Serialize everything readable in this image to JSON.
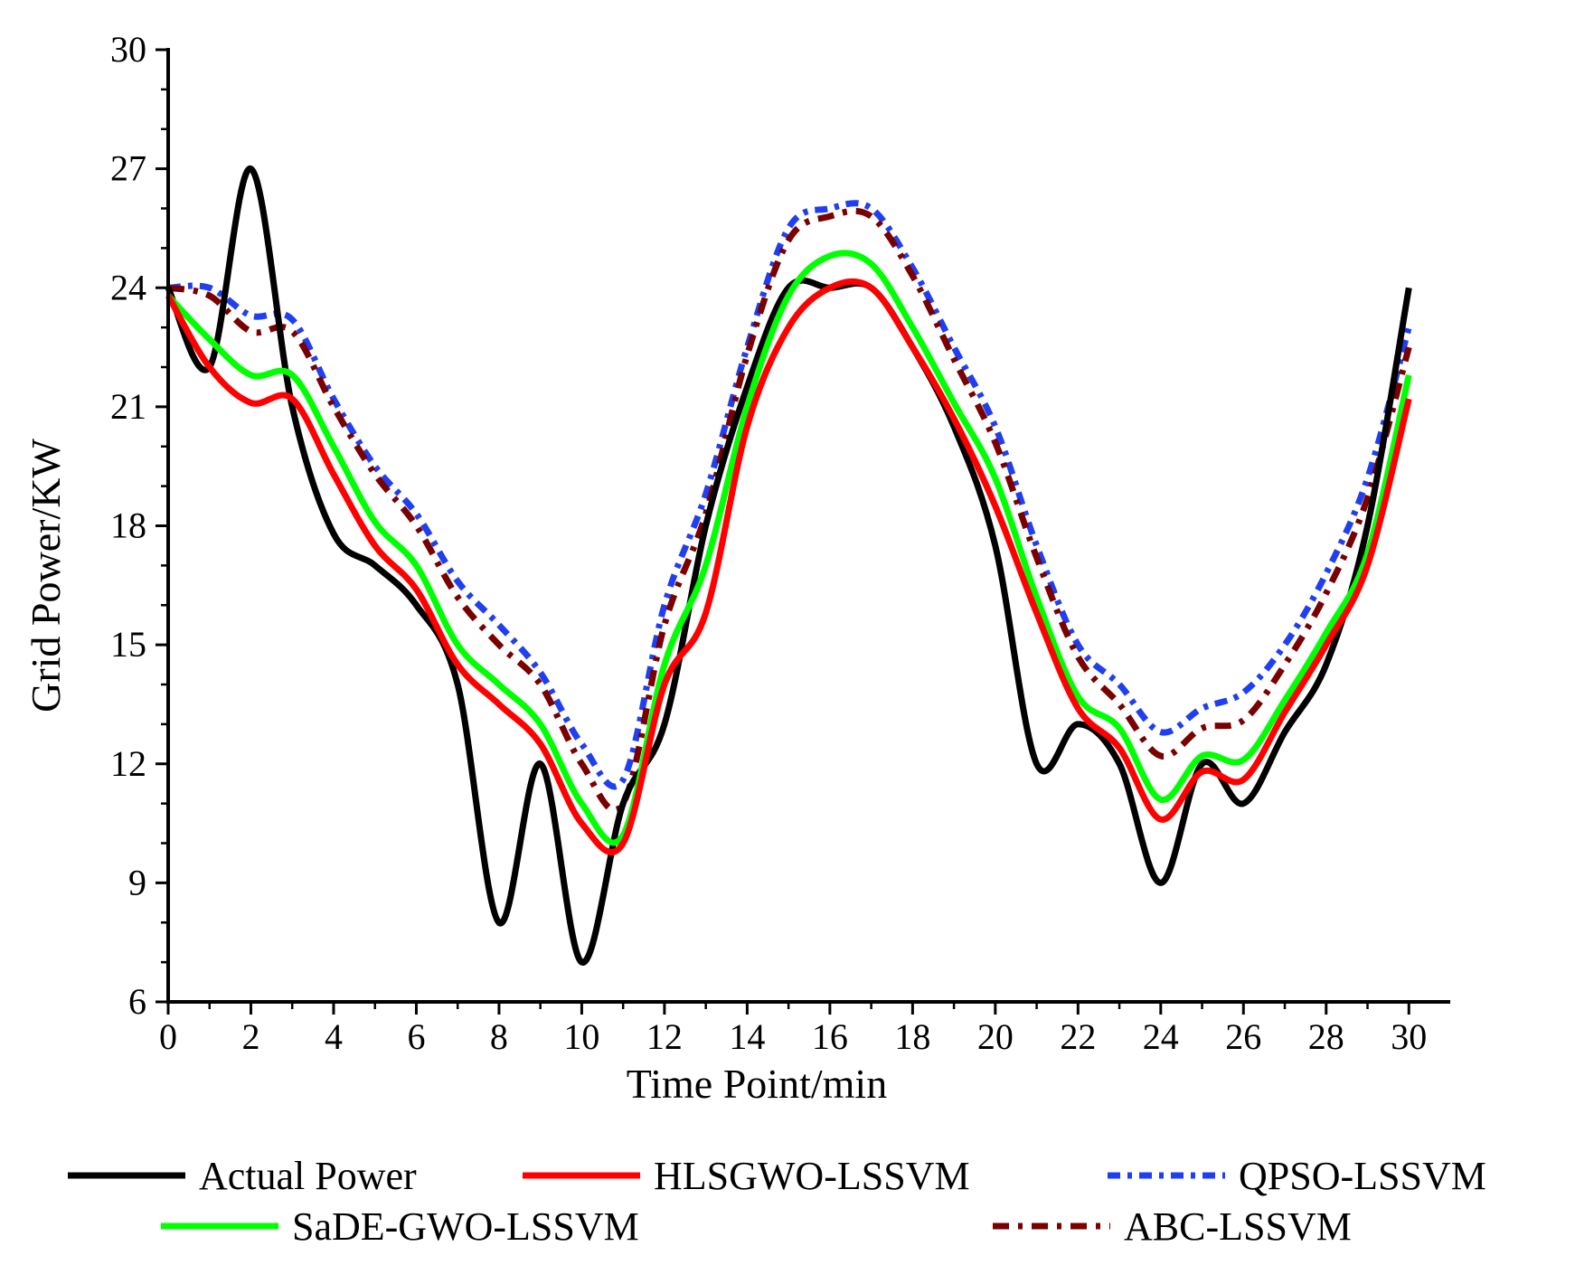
{
  "chart_data": {
    "type": "line",
    "title": "",
    "xlabel": "Time Point/min",
    "ylabel": "Grid Power/KW",
    "xlim": [
      0,
      31
    ],
    "ylim": [
      6,
      30
    ],
    "xticks": [
      0,
      2,
      4,
      6,
      8,
      10,
      12,
      14,
      16,
      18,
      20,
      22,
      24,
      26,
      28,
      30
    ],
    "yticks": [
      6,
      9,
      12,
      15,
      18,
      21,
      24,
      27,
      30
    ],
    "legend_position": "bottom",
    "series": [
      {
        "name": "Actual Power",
        "color": "#000000",
        "dash": "solid",
        "x": [
          0,
          1,
          2,
          3,
          4,
          5,
          6,
          7,
          8,
          9,
          10,
          11,
          12,
          13,
          14,
          15,
          16,
          17,
          18,
          19,
          20,
          21,
          22,
          23,
          24,
          25,
          26,
          27,
          28,
          29,
          30
        ],
        "values": [
          24,
          22,
          27,
          21,
          17.8,
          17,
          16,
          14,
          8,
          12,
          7,
          11,
          13,
          18,
          21.5,
          24,
          24,
          24,
          22.5,
          20.5,
          17.5,
          12,
          13,
          12,
          9,
          12,
          11,
          12.8,
          14.5,
          18,
          24
        ]
      },
      {
        "name": "HLSGWO-LSSVM",
        "color": "#ff0000",
        "dash": "solid",
        "x": [
          0,
          1,
          2,
          3,
          4,
          5,
          6,
          7,
          8,
          9,
          10,
          11,
          12,
          13,
          14,
          15,
          16,
          17,
          18,
          19,
          20,
          21,
          22,
          23,
          24,
          25,
          26,
          27,
          28,
          29,
          30
        ],
        "values": [
          23.8,
          22,
          21.1,
          21.2,
          19.3,
          17.5,
          16.4,
          14.5,
          13.5,
          12.5,
          10.5,
          10,
          14,
          15.8,
          20.5,
          23,
          24,
          24,
          22.5,
          20.7,
          18.5,
          15.8,
          13.4,
          12.4,
          10.6,
          11.8,
          11.6,
          13.3,
          15,
          17,
          21.2
        ]
      },
      {
        "name": "QPSO-LSSVM",
        "color": "#1f3ff0",
        "dash": "14,8,5,8",
        "x": [
          0,
          1,
          2,
          3,
          4,
          5,
          6,
          7,
          8,
          9,
          10,
          11,
          12,
          13,
          14,
          15,
          16,
          17,
          18,
          19,
          20,
          21,
          22,
          23,
          24,
          25,
          26,
          27,
          28,
          29,
          30
        ],
        "values": [
          24,
          24,
          23.3,
          23.2,
          21.2,
          19.5,
          18.3,
          16.6,
          15.5,
          14.3,
          12.5,
          11.6,
          16,
          18.8,
          22.5,
          25.5,
          26,
          26,
          24.5,
          22.5,
          20.5,
          17.5,
          15,
          14,
          12.8,
          13.4,
          13.8,
          15,
          16.8,
          19.2,
          23
        ]
      },
      {
        "name": "SaDE-GWO-LSSVM",
        "color": "#00ff00",
        "dash": "solid",
        "x": [
          0,
          1,
          2,
          3,
          4,
          5,
          6,
          7,
          8,
          9,
          10,
          11,
          12,
          13,
          14,
          15,
          16,
          17,
          18,
          19,
          20,
          21,
          22,
          23,
          24,
          25,
          26,
          27,
          28,
          29,
          30
        ],
        "values": [
          23.8,
          22.7,
          21.8,
          21.8,
          20,
          18.1,
          17,
          15,
          14,
          13,
          11,
          10.2,
          14.5,
          17,
          21,
          23.8,
          24.8,
          24.6,
          23,
          21.1,
          19.2,
          16.2,
          13.7,
          12.9,
          11.1,
          12.2,
          12.1,
          13.6,
          15.3,
          17.3,
          21.8
        ]
      },
      {
        "name": "ABC-LSSVM",
        "color": "#7a0000",
        "dash": "18,10,5,10",
        "x": [
          0,
          1,
          2,
          3,
          4,
          5,
          6,
          7,
          8,
          9,
          10,
          11,
          12,
          13,
          14,
          15,
          16,
          17,
          18,
          19,
          20,
          21,
          22,
          23,
          24,
          25,
          26,
          27,
          28,
          29,
          30
        ],
        "values": [
          24,
          23.8,
          22.9,
          22.9,
          21,
          19.3,
          18,
          16.2,
          15,
          14,
          12,
          11,
          15.5,
          18.3,
          22.3,
          25.2,
          25.8,
          25.8,
          24.3,
          22.2,
          20.1,
          17.2,
          14.7,
          13.5,
          12.2,
          12.9,
          13.1,
          14.5,
          16.3,
          18.7,
          22.5
        ]
      }
    ]
  }
}
